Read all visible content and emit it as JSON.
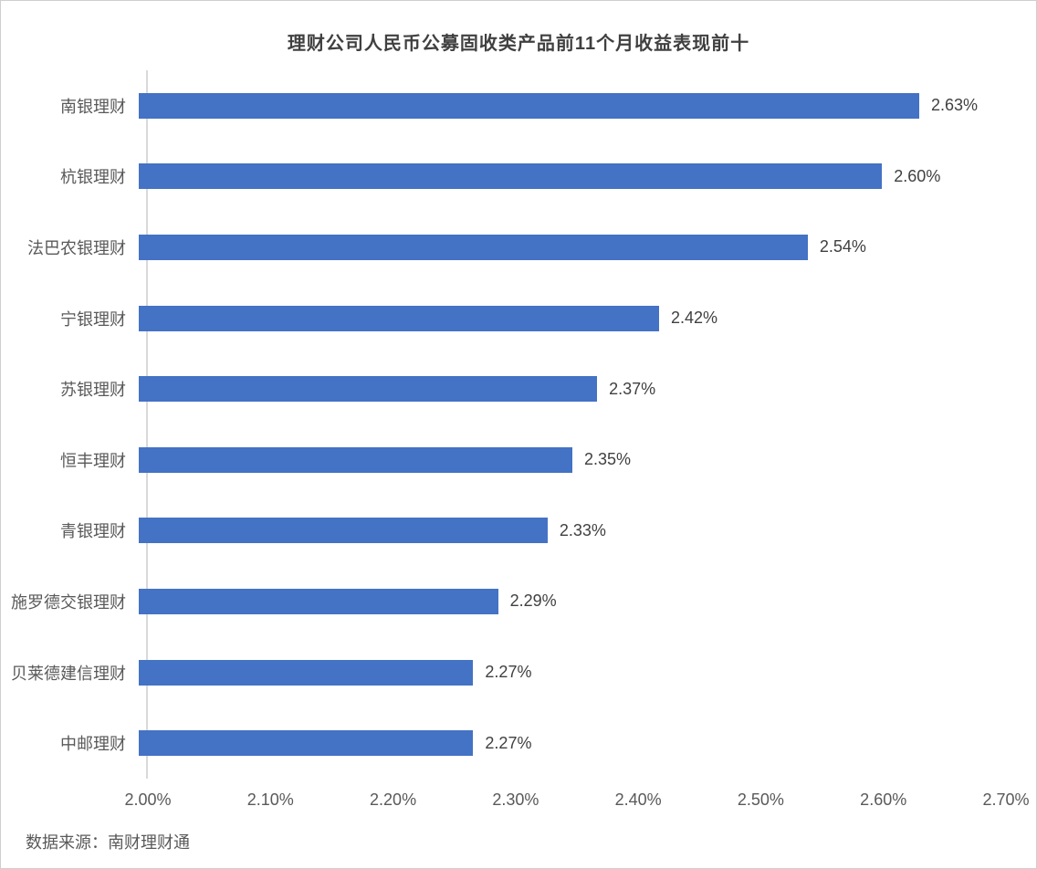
{
  "chart_data": {
    "type": "bar",
    "orientation": "horizontal",
    "title": "理财公司人民币公募固收类产品前11个月收益表现前十",
    "categories": [
      "南银理财",
      "杭银理财",
      "法巴农银理财",
      "宁银理财",
      "苏银理财",
      "恒丰理财",
      "青银理财",
      "施罗德交银理财",
      "贝莱德建信理财",
      "中邮理财"
    ],
    "values": [
      2.63,
      2.6,
      2.54,
      2.42,
      2.37,
      2.35,
      2.33,
      2.29,
      2.27,
      2.27
    ],
    "value_labels": [
      "2.63%",
      "2.60%",
      "2.54%",
      "2.42%",
      "2.37%",
      "2.35%",
      "2.33%",
      "2.29%",
      "2.27%",
      "2.27%"
    ],
    "x_ticks": [
      "2.00%",
      "2.10%",
      "2.20%",
      "2.30%",
      "2.40%",
      "2.50%",
      "2.60%",
      "2.70%"
    ],
    "xlim": [
      2.0,
      2.7
    ],
    "xlabel": "",
    "ylabel": "",
    "grid": false,
    "legend": "none",
    "bar_color": "#4472c4",
    "axis_line_color": "#d9d9d9"
  },
  "footer": {
    "source": "数据来源：南财理财通"
  }
}
